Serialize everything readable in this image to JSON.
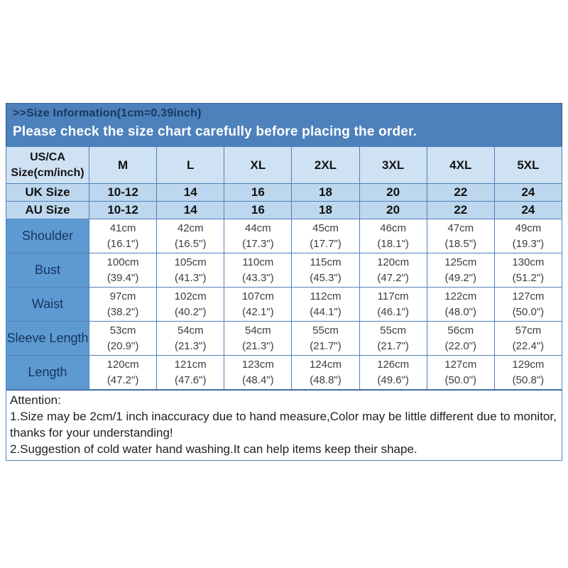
{
  "banner": {
    "title": ">>Size Information(1cm=0.39inch)",
    "subtitle": "Please check the size chart carefully before placing the order."
  },
  "size_table": {
    "corner_line1": "US/CA",
    "corner_line2": "Size(cm/inch)",
    "size_columns": [
      "M",
      "L",
      "XL",
      "2XL",
      "3XL",
      "4XL",
      "5XL"
    ],
    "uk_row": {
      "label": "UK Size",
      "values": [
        "10-12",
        "14",
        "16",
        "18",
        "20",
        "22",
        "24"
      ]
    },
    "au_row": {
      "label": "AU Size",
      "values": [
        "10-12",
        "14",
        "16",
        "18",
        "20",
        "22",
        "24"
      ]
    },
    "measurement_rows": [
      {
        "label": "Shoulder",
        "cells": [
          {
            "cm": "41cm",
            "inch": "(16.1\")"
          },
          {
            "cm": "42cm",
            "inch": "(16.5\")"
          },
          {
            "cm": "44cm",
            "inch": "(17.3\")"
          },
          {
            "cm": "45cm",
            "inch": "(17.7\")"
          },
          {
            "cm": "46cm",
            "inch": "(18.1\")"
          },
          {
            "cm": "47cm",
            "inch": "(18.5\")"
          },
          {
            "cm": "49cm",
            "inch": "(19.3\")"
          }
        ]
      },
      {
        "label": "Bust",
        "cells": [
          {
            "cm": "100cm",
            "inch": "(39.4\")"
          },
          {
            "cm": "105cm",
            "inch": "(41.3\")"
          },
          {
            "cm": "110cm",
            "inch": "(43.3\")"
          },
          {
            "cm": "115cm",
            "inch": "(45.3\")"
          },
          {
            "cm": "120cm",
            "inch": "(47.2\")"
          },
          {
            "cm": "125cm",
            "inch": "(49.2\")"
          },
          {
            "cm": "130cm",
            "inch": "(51.2\")"
          }
        ]
      },
      {
        "label": "Waist",
        "cells": [
          {
            "cm": "97cm",
            "inch": "(38.2\")"
          },
          {
            "cm": "102cm",
            "inch": "(40.2\")"
          },
          {
            "cm": "107cm",
            "inch": "(42.1\")"
          },
          {
            "cm": "112cm",
            "inch": "(44.1\")"
          },
          {
            "cm": "117cm",
            "inch": "(46.1\")"
          },
          {
            "cm": "122cm",
            "inch": "(48.0\")"
          },
          {
            "cm": "127cm",
            "inch": "(50.0\")"
          }
        ]
      },
      {
        "label": "Sleeve Length",
        "cells": [
          {
            "cm": "53cm",
            "inch": "(20.9\")"
          },
          {
            "cm": "54cm",
            "inch": "(21.3\")"
          },
          {
            "cm": "54cm",
            "inch": "(21.3\")"
          },
          {
            "cm": "55cm",
            "inch": "(21.7\")"
          },
          {
            "cm": "55cm",
            "inch": "(21.7\")"
          },
          {
            "cm": "56cm",
            "inch": "(22.0\")"
          },
          {
            "cm": "57cm",
            "inch": "(22.4\")"
          }
        ]
      },
      {
        "label": "Length",
        "cells": [
          {
            "cm": "120cm",
            "inch": "(47.2\")"
          },
          {
            "cm": "121cm",
            "inch": "(47.6\")"
          },
          {
            "cm": "123cm",
            "inch": "(48.4\")"
          },
          {
            "cm": "124cm",
            "inch": "(48.8\")"
          },
          {
            "cm": "126cm",
            "inch": "(49.6\")"
          },
          {
            "cm": "127cm",
            "inch": "(50.0\")"
          },
          {
            "cm": "129cm",
            "inch": "(50.8\")"
          }
        ]
      }
    ]
  },
  "attention": {
    "title": "Attention:",
    "line1": "1.Size may be 2cm/1 inch inaccuracy due to hand measure,Color may be little different due to monitor, thanks for your understanding!",
    "line2": "2.Suggestion of cold water hand washing.It can help items keep their shape."
  },
  "colors": {
    "banner_bg": "#4d81bc",
    "banner_title_text": "#17375e",
    "banner_subtitle_text": "#ffffff",
    "header_row_bg": "#cfe2f3",
    "uk_au_row_bg": "#bdd7ee",
    "measure_label_bg": "#5e9ad2",
    "measure_label_text": "#15355f",
    "cell_border": "#4f81bd",
    "value_text": "#3d3d3d"
  }
}
